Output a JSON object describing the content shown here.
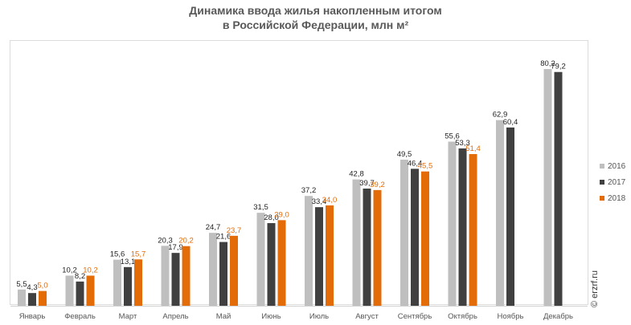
{
  "title": {
    "line1": "Динамика ввода жилья накопленным итогом",
    "line2": "в Российской Федерации, млн м²"
  },
  "watermark": "© erzrf.ru",
  "colors": {
    "2016": "#bfbfbf",
    "2017": "#404040",
    "2018": "#e36c09",
    "label2018": "#e36c09",
    "labelDefault": "#222222"
  },
  "legend": [
    {
      "label": "2016"
    },
    {
      "label": "2017"
    },
    {
      "label": "2018"
    }
  ],
  "chart_data": {
    "type": "bar",
    "title": "Динамика ввода жилья накопленным итогом в Российской Федерации, млн м²",
    "categories": [
      "Январь",
      "Февраль",
      "Март",
      "Апрель",
      "Май",
      "Июнь",
      "Июль",
      "Август",
      "Сентябрь",
      "Октябрь",
      "Ноябрь",
      "Декабрь"
    ],
    "series": [
      {
        "name": "2016",
        "values": [
          5.5,
          10.2,
          15.6,
          20.3,
          24.7,
          31.5,
          37.2,
          42.8,
          49.5,
          55.6,
          62.9,
          80.2
        ]
      },
      {
        "name": "2017",
        "values": [
          4.3,
          8.2,
          13.1,
          17.9,
          21.6,
          28.0,
          33.4,
          39.7,
          46.4,
          53.3,
          60.4,
          79.2
        ]
      },
      {
        "name": "2018",
        "values": [
          5.0,
          10.2,
          15.7,
          20.2,
          23.7,
          29.0,
          34.0,
          39.2,
          45.5,
          51.4,
          null,
          null
        ]
      }
    ],
    "value_labels": [
      [
        "5,5",
        "10,2",
        "15,6",
        "20,3",
        "24,7",
        "31,5",
        "37,2",
        "42,8",
        "49,5",
        "55,6",
        "62,9",
        "80,2"
      ],
      [
        "4,3",
        "8,2",
        "13,1",
        "17,9",
        "21,6",
        "28,0",
        "33,4",
        "39,7",
        "46,4",
        "53,3",
        "60,4",
        "79,2"
      ],
      [
        "5,0",
        "10,2",
        "15,7",
        "20,2",
        "23,7",
        "29,0",
        "34,0",
        "39,2",
        "45,5",
        "51,4",
        "",
        ""
      ]
    ],
    "xlabel": "",
    "ylabel": "",
    "ylim": [
      0,
      90
    ],
    "grid": false,
    "legend_position": "right"
  }
}
